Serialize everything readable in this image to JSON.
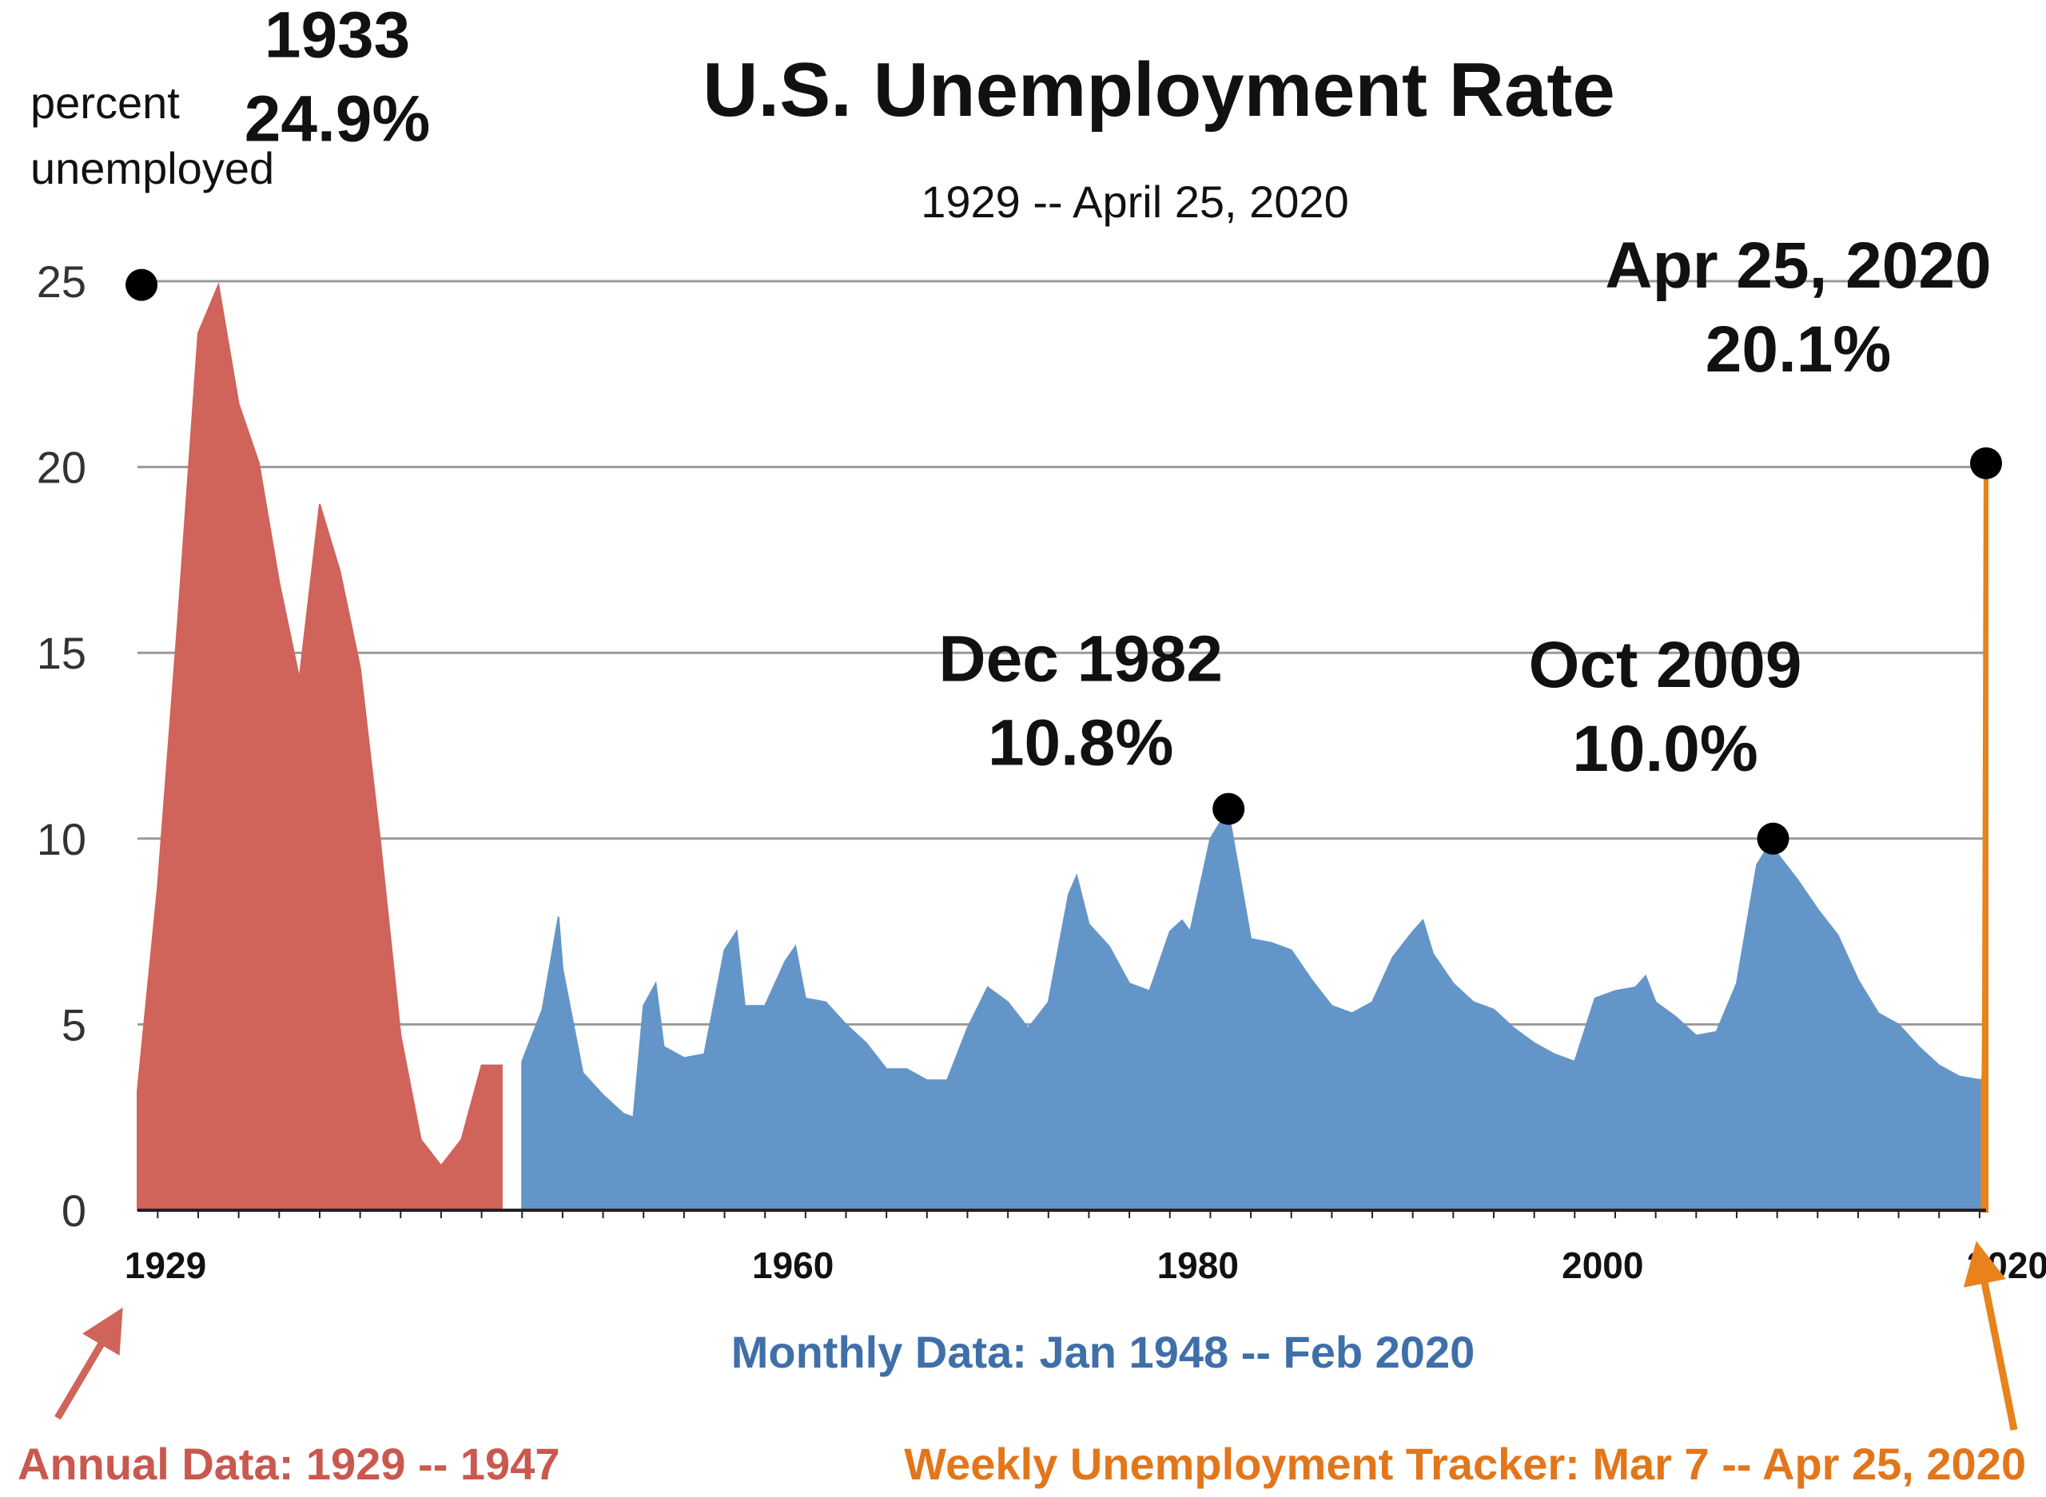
{
  "chart_data": {
    "type": "area",
    "title": "U.S. Unemployment Rate",
    "subtitle": "1929 -- April 25, 2020",
    "ylabel": [
      "percent",
      "unemployed"
    ],
    "ylim": [
      0,
      25
    ],
    "yticks": [
      "0",
      "5",
      "10",
      "15",
      "20",
      "25"
    ],
    "xticks": [
      {
        "label": "1929",
        "year": 1929
      },
      {
        "label": "1960",
        "year": 1960
      },
      {
        "label": "1980",
        "year": 1980
      },
      {
        "label": "2000",
        "year": 2000
      },
      {
        "label": "2020",
        "year": 2020
      }
    ],
    "grid": true,
    "colors": {
      "annual": "#d0635a",
      "monthly": "#6495c8",
      "weekly": "#e8821a",
      "monthly_text": "#3f6fa8",
      "annual_text": "#c9584f",
      "weekly_text": "#e2761a"
    },
    "series": [
      {
        "name": "Annual Data: 1929 -- 1947",
        "x": [
          1929,
          1930,
          1931,
          1932,
          1933,
          1934,
          1935,
          1936,
          1937,
          1938,
          1939,
          1940,
          1941,
          1942,
          1943,
          1944,
          1945,
          1946,
          1947
        ],
        "values": [
          3.2,
          8.7,
          15.9,
          23.6,
          24.9,
          21.7,
          20.1,
          16.9,
          14.3,
          19.0,
          17.2,
          14.6,
          9.9,
          4.7,
          1.9,
          1.2,
          1.9,
          3.9,
          3.9
        ]
      },
      {
        "name": "Monthly Data: Jan 1948 -- Feb 2020",
        "x": [
          1948,
          1949,
          1949.8,
          1950,
          1951,
          1952,
          1953,
          1953.5,
          1954,
          1954.6,
          1955,
          1956,
          1957,
          1958,
          1958.6,
          1959,
          1960,
          1961,
          1961.5,
          1962,
          1963,
          1964,
          1965,
          1966,
          1967,
          1968,
          1969,
          1970,
          1971,
          1972,
          1973,
          1974,
          1975,
          1975.4,
          1976,
          1977,
          1978,
          1979,
          1980,
          1980.6,
          1981,
          1982,
          1982.9,
          1983,
          1984,
          1985,
          1986,
          1987,
          1988,
          1989,
          1990,
          1991,
          1992,
          1992.5,
          1993,
          1994,
          1995,
          1996,
          1997,
          1998,
          1999,
          2000,
          2001,
          2002,
          2003,
          2003.5,
          2004,
          2005,
          2006,
          2007,
          2008,
          2009,
          2009.8,
          2010,
          2011,
          2012,
          2013,
          2014,
          2015,
          2016,
          2017,
          2018,
          2019,
          2020.1
        ],
        "values": [
          4.0,
          5.4,
          7.9,
          6.5,
          3.7,
          3.1,
          2.6,
          2.5,
          5.5,
          6.1,
          4.4,
          4.1,
          4.2,
          7.0,
          7.5,
          5.5,
          5.5,
          6.7,
          7.1,
          5.7,
          5.6,
          5.0,
          4.5,
          3.8,
          3.8,
          3.5,
          3.5,
          4.9,
          6.0,
          5.6,
          4.9,
          5.6,
          8.5,
          9.0,
          7.7,
          7.1,
          6.1,
          5.9,
          7.5,
          7.8,
          7.5,
          10.0,
          10.8,
          10.4,
          7.3,
          7.2,
          7.0,
          6.2,
          5.5,
          5.3,
          5.6,
          6.8,
          7.5,
          7.8,
          6.9,
          6.1,
          5.6,
          5.4,
          4.9,
          4.5,
          4.2,
          4.0,
          5.7,
          5.9,
          6.0,
          6.3,
          5.6,
          5.2,
          4.7,
          4.8,
          6.1,
          9.3,
          10.0,
          9.6,
          8.9,
          8.1,
          7.4,
          6.2,
          5.3,
          5.0,
          4.4,
          3.9,
          3.6,
          3.5
        ]
      },
      {
        "name": "Weekly Unemployment Tracker: Mar 7 -- Apr 25,  2020",
        "x": [
          2020.18,
          2020.2,
          2020.22,
          2020.24,
          2020.26,
          2020.28,
          2020.3,
          2020.32
        ],
        "values": [
          3.5,
          3.5,
          3.7,
          5.4,
          9.0,
          12.6,
          16.8,
          20.1
        ]
      }
    ],
    "annotations": [
      {
        "line1": "1933",
        "line2": "24.9%",
        "x": 1929.2,
        "y": 24.9
      },
      {
        "line1": "Dec 1982",
        "line2": "10.8%",
        "x": 1982.9,
        "y": 10.8
      },
      {
        "line1": "Oct 2009",
        "line2": "10.0%",
        "x": 2009.8,
        "y": 10.0
      },
      {
        "line1": "Apr 25, 2020",
        "line2": "20.1%",
        "x": 2020.32,
        "y": 20.1
      }
    ],
    "notes": {
      "monthly": "Monthly Data: Jan 1948 -- Feb 2020",
      "annual": "Annual Data: 1929 -- 1947",
      "weekly": "Weekly Unemployment Tracker: Mar 7 -- Apr 25,  2020"
    }
  }
}
